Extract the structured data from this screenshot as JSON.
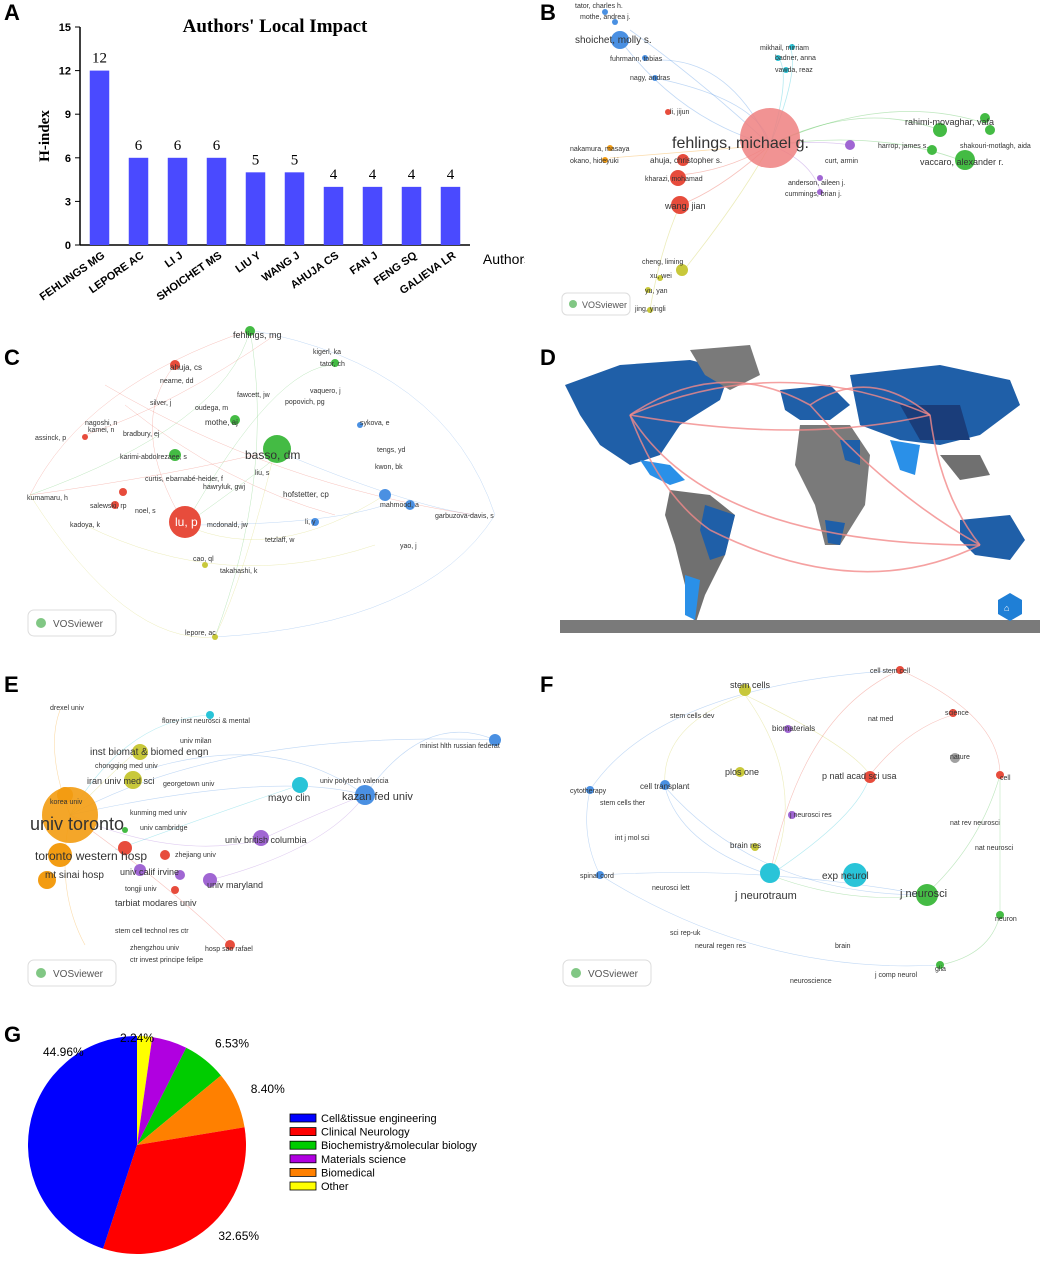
{
  "panel_letters": [
    "A",
    "B",
    "C",
    "D",
    "E",
    "F",
    "G"
  ],
  "vosviewer_label": "VOSviewer",
  "chart_data": [
    {
      "type": "bar",
      "title": "Authors' Local Impact",
      "xlabel": "Authors",
      "ylabel": "H-index",
      "ylim": [
        0,
        15
      ],
      "yticks": [
        0,
        3,
        6,
        9,
        12,
        15
      ],
      "categories": [
        "FEHLINGS MG",
        "LEPORE AC",
        "LI J",
        "SHOICHET MS",
        "LIU Y",
        "WANG J",
        "AHUJA CS",
        "FAN J",
        "FENG SQ",
        "GALIEVA LR"
      ],
      "values": [
        12,
        6,
        6,
        6,
        5,
        5,
        4,
        4,
        4,
        4
      ],
      "value_labels": [
        "12",
        "6",
        "6",
        "6",
        "5",
        "5",
        "4",
        "4",
        "4",
        "4"
      ],
      "bar_color": "#4a4aff",
      "grid": false
    },
    {
      "type": "pie",
      "categories": [
        "Cell&tissue engineering",
        "Clinical Neurology",
        "Biochemistry&molecular biology",
        "Materials science",
        "Biomedical",
        "Other"
      ],
      "values": [
        44.96,
        32.65,
        6.53,
        5.22,
        8.4,
        2.24
      ],
      "labels": [
        "44.96%",
        "32.65%",
        "6.53%",
        "5.22%",
        "8.40%",
        "2.24%"
      ],
      "colors": [
        "#0000ff",
        "#ff0000",
        "#00cc00",
        "#b000e0",
        "#ff8000",
        "#ffff00"
      ],
      "legend_position": "right"
    }
  ],
  "network_b": {
    "labels": [
      "tator, charles h.",
      "mothe, andrea j.",
      "shoichet, molly s.",
      "fuhrmann, tobias",
      "nagy, andras",
      "mikhail, mirriam",
      "badner, anna",
      "vawda, reaz",
      "li, jijun",
      "fehlings, michael g.",
      "rahimi-movaghar, vafa",
      "harrop, james s.",
      "shakouri-motlagh, aida",
      "vaccaro, alexander r.",
      "nakamura, masaya",
      "okano, hideyuki",
      "ahuja, christopher s.",
      "curt, armin",
      "kharazi, mohamad",
      "anderson, aileen j.",
      "cummings, brian j.",
      "wang, jian",
      "cheng, liming",
      "xu, wei",
      "yu, yan",
      "jing, yingli"
    ]
  },
  "network_c": {
    "labels": [
      "fehlings, mg",
      "kigerl, ka",
      "tator, ch",
      "ahuja, cs",
      "nearne, dd",
      "fawcett, jw",
      "vaquero, j",
      "popovich, pg",
      "silver, j",
      "oudega, m",
      "nagoshi, n",
      "kamei, n",
      "bradbury, ej",
      "mothe, aj",
      "assinck, p",
      "karimi-abdolrezaee, s",
      "basso, dm",
      "sykova, e",
      "tengs, yd",
      "kwon, bk",
      "curtis, e",
      "barnabé-heider, f",
      "liu, s",
      "hawryluk, gwj",
      "hofstetter, cp",
      "mahmood, a",
      "kumamaru, h",
      "salewski, rp",
      "noel, s",
      "lu, p",
      "li, y",
      "garbuzova-davis, s",
      "kadoya, k",
      "mcdonald, jw",
      "tetzlaff, w",
      "yao, j",
      "cao, ql",
      "takahashi, k",
      "lepore, ac"
    ]
  },
  "network_e": {
    "labels": [
      "drexel univ",
      "florey inst neurosci & mental",
      "univ milan",
      "minist hlth russian federat",
      "inst biomat & biomed engn",
      "chongqing med univ",
      "georgetown univ",
      "iran univ med sci",
      "korea univ",
      "univ polytech valencia",
      "mayo clin",
      "kazan fed univ",
      "univ toronto",
      "kunming med univ",
      "univ cambridge",
      "univ british columbia",
      "toronto western hosp",
      "zhejiang univ",
      "mt sinai hosp",
      "univ calif irvine",
      "univ maryland",
      "tongji univ",
      "tarbiat modares univ",
      "stem cell technol res ctr",
      "zhengzhou univ",
      "hosp sao rafael",
      "ctr invest principe felipe"
    ]
  },
  "network_f": {
    "labels": [
      "cell stem cell",
      "stem cells",
      "nat med",
      "science",
      "stem cells dev",
      "biomaterials",
      "nature",
      "cytotherapy",
      "cell transplant",
      "plos one",
      "p natl acad sci usa",
      "cell",
      "stem cells ther",
      "j neurosci res",
      "nat rev neurosci",
      "brain res",
      "int j mol sci",
      "nat neurosci",
      "spinal cord",
      "neurosci lett",
      "exp neurol",
      "j neurotraum",
      "j neurosci",
      "sci rep-uk",
      "neural regen res",
      "brain",
      "neuron",
      "neuroscience",
      "j comp neurol",
      "glia"
    ]
  }
}
